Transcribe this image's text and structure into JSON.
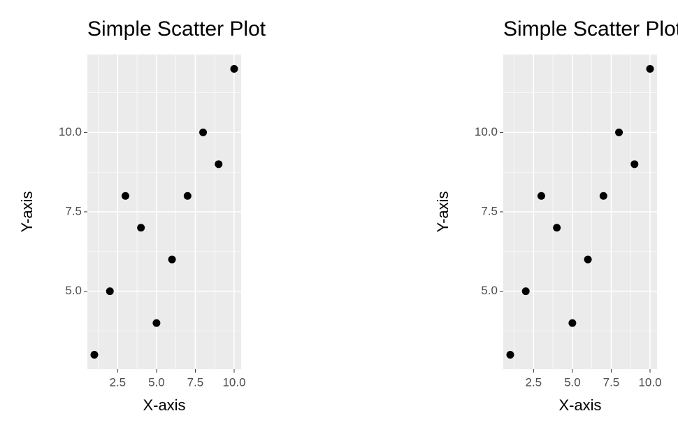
{
  "chart_data": [
    {
      "type": "scatter",
      "title": "Simple Scatter Plot",
      "x_label": "X-axis",
      "y_label": "Y-axis",
      "x": [
        1,
        2,
        3,
        4,
        5,
        6,
        7,
        8,
        9,
        10
      ],
      "values": [
        3,
        5,
        8,
        7,
        4,
        6,
        8,
        10,
        9,
        12
      ],
      "color": "#000000",
      "xlim": [
        0.55,
        10.45
      ],
      "ylim": [
        2.55,
        12.45
      ],
      "xticks": [
        {
          "value": 2.5,
          "label": "2.5"
        },
        {
          "value": 5,
          "label": "5.0"
        },
        {
          "value": 7.5,
          "label": "7.5"
        },
        {
          "value": 10,
          "label": "10.0"
        }
      ],
      "yticks": [
        {
          "value": 5,
          "label": "5.0"
        },
        {
          "value": 7.5,
          "label": "7.5"
        },
        {
          "value": 10,
          "label": "10.0"
        }
      ],
      "grid": true
    },
    {
      "type": "scatter",
      "title": "Simple Scatter Plot",
      "x_label": "X-axis",
      "y_label": "Y-axis",
      "x": [
        1,
        2,
        3,
        4,
        5,
        6,
        7,
        8,
        9,
        10
      ],
      "values": [
        3,
        5,
        8,
        7,
        4,
        6,
        8,
        10,
        9,
        12
      ],
      "color": "#000000",
      "xlim": [
        0.55,
        10.45
      ],
      "ylim": [
        2.55,
        12.45
      ],
      "xticks": [
        {
          "value": 2.5,
          "label": "2.5"
        },
        {
          "value": 5,
          "label": "5.0"
        },
        {
          "value": 7.5,
          "label": "7.5"
        },
        {
          "value": 10,
          "label": "10.0"
        }
      ],
      "yticks": [
        {
          "value": 5,
          "label": "5.0"
        },
        {
          "value": 7.5,
          "label": "7.5"
        },
        {
          "value": 10,
          "label": "10.0"
        }
      ],
      "grid": true
    }
  ]
}
